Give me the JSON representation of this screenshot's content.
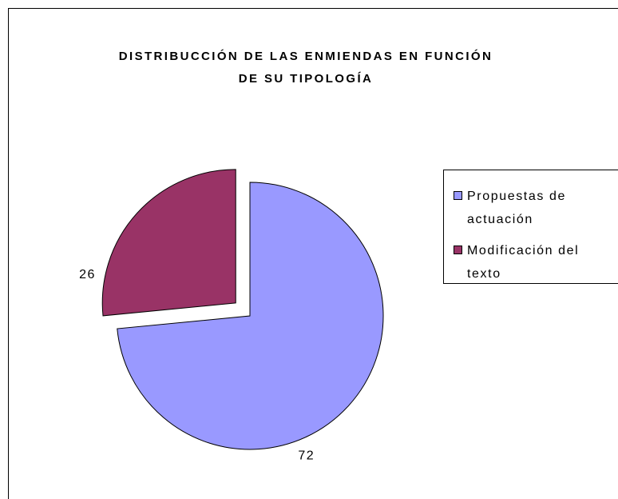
{
  "chart_data": {
    "type": "pie",
    "title": [
      "DISTRIBUCCIÓN DE LAS ENMIENDAS EN FUNCIÓN",
      "DE SU TIPOLOGÍA"
    ],
    "categories": [
      "Propuestas de actuación",
      "Modificación del texto"
    ],
    "values": [
      72,
      26
    ],
    "colors": [
      "#9999ff",
      "#993366"
    ],
    "exploded": [
      false,
      true
    ],
    "legend": "right"
  }
}
